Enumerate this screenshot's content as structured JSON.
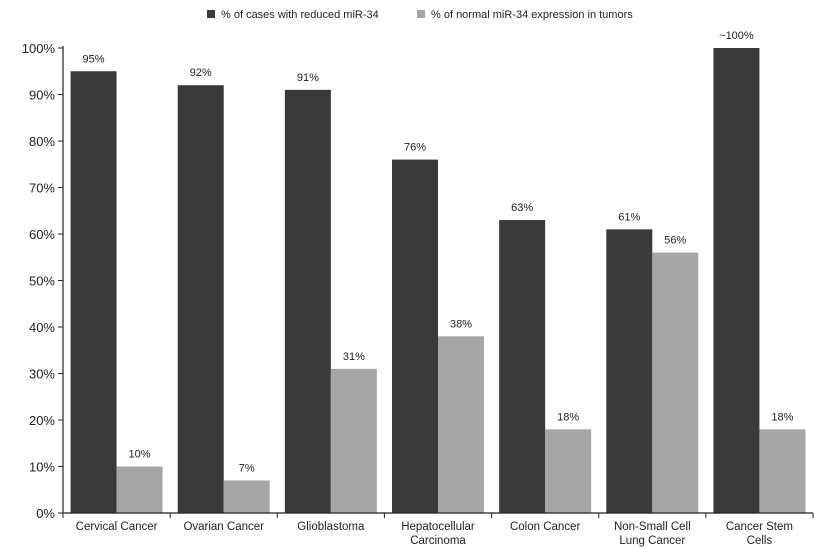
{
  "chart_data": {
    "type": "bar",
    "categories": [
      [
        "Cervical Cancer"
      ],
      [
        "Ovarian Cancer"
      ],
      [
        "Glioblastoma"
      ],
      [
        "Hepatocellular",
        "Carcinoma"
      ],
      [
        "Colon Cancer"
      ],
      [
        "Non-Small Cell",
        "Lung Cancer"
      ],
      [
        "Cancer Stem",
        "Cells"
      ]
    ],
    "series": [
      {
        "name": "% of cases with reduced miR-34",
        "color": "#3a3a3a",
        "values": [
          95,
          92,
          91,
          76,
          63,
          61,
          100
        ],
        "labels": [
          "95%",
          "92%",
          "91%",
          "76%",
          "63%",
          "61%",
          "~100%"
        ]
      },
      {
        "name": "% of normal miR-34 expression in tumors",
        "color": "#a6a6a6",
        "values": [
          10,
          7,
          31,
          38,
          18,
          56,
          18
        ],
        "labels": [
          "10%",
          "7%",
          "31%",
          "38%",
          "18%",
          "56%",
          "18%"
        ]
      }
    ],
    "ylim": [
      0,
      100
    ],
    "yticks": [
      "0%",
      "10%",
      "20%",
      "30%",
      "40%",
      "50%",
      "60%",
      "70%",
      "80%",
      "90%",
      "100%"
    ],
    "legend_position": "top-center",
    "grid": false
  }
}
